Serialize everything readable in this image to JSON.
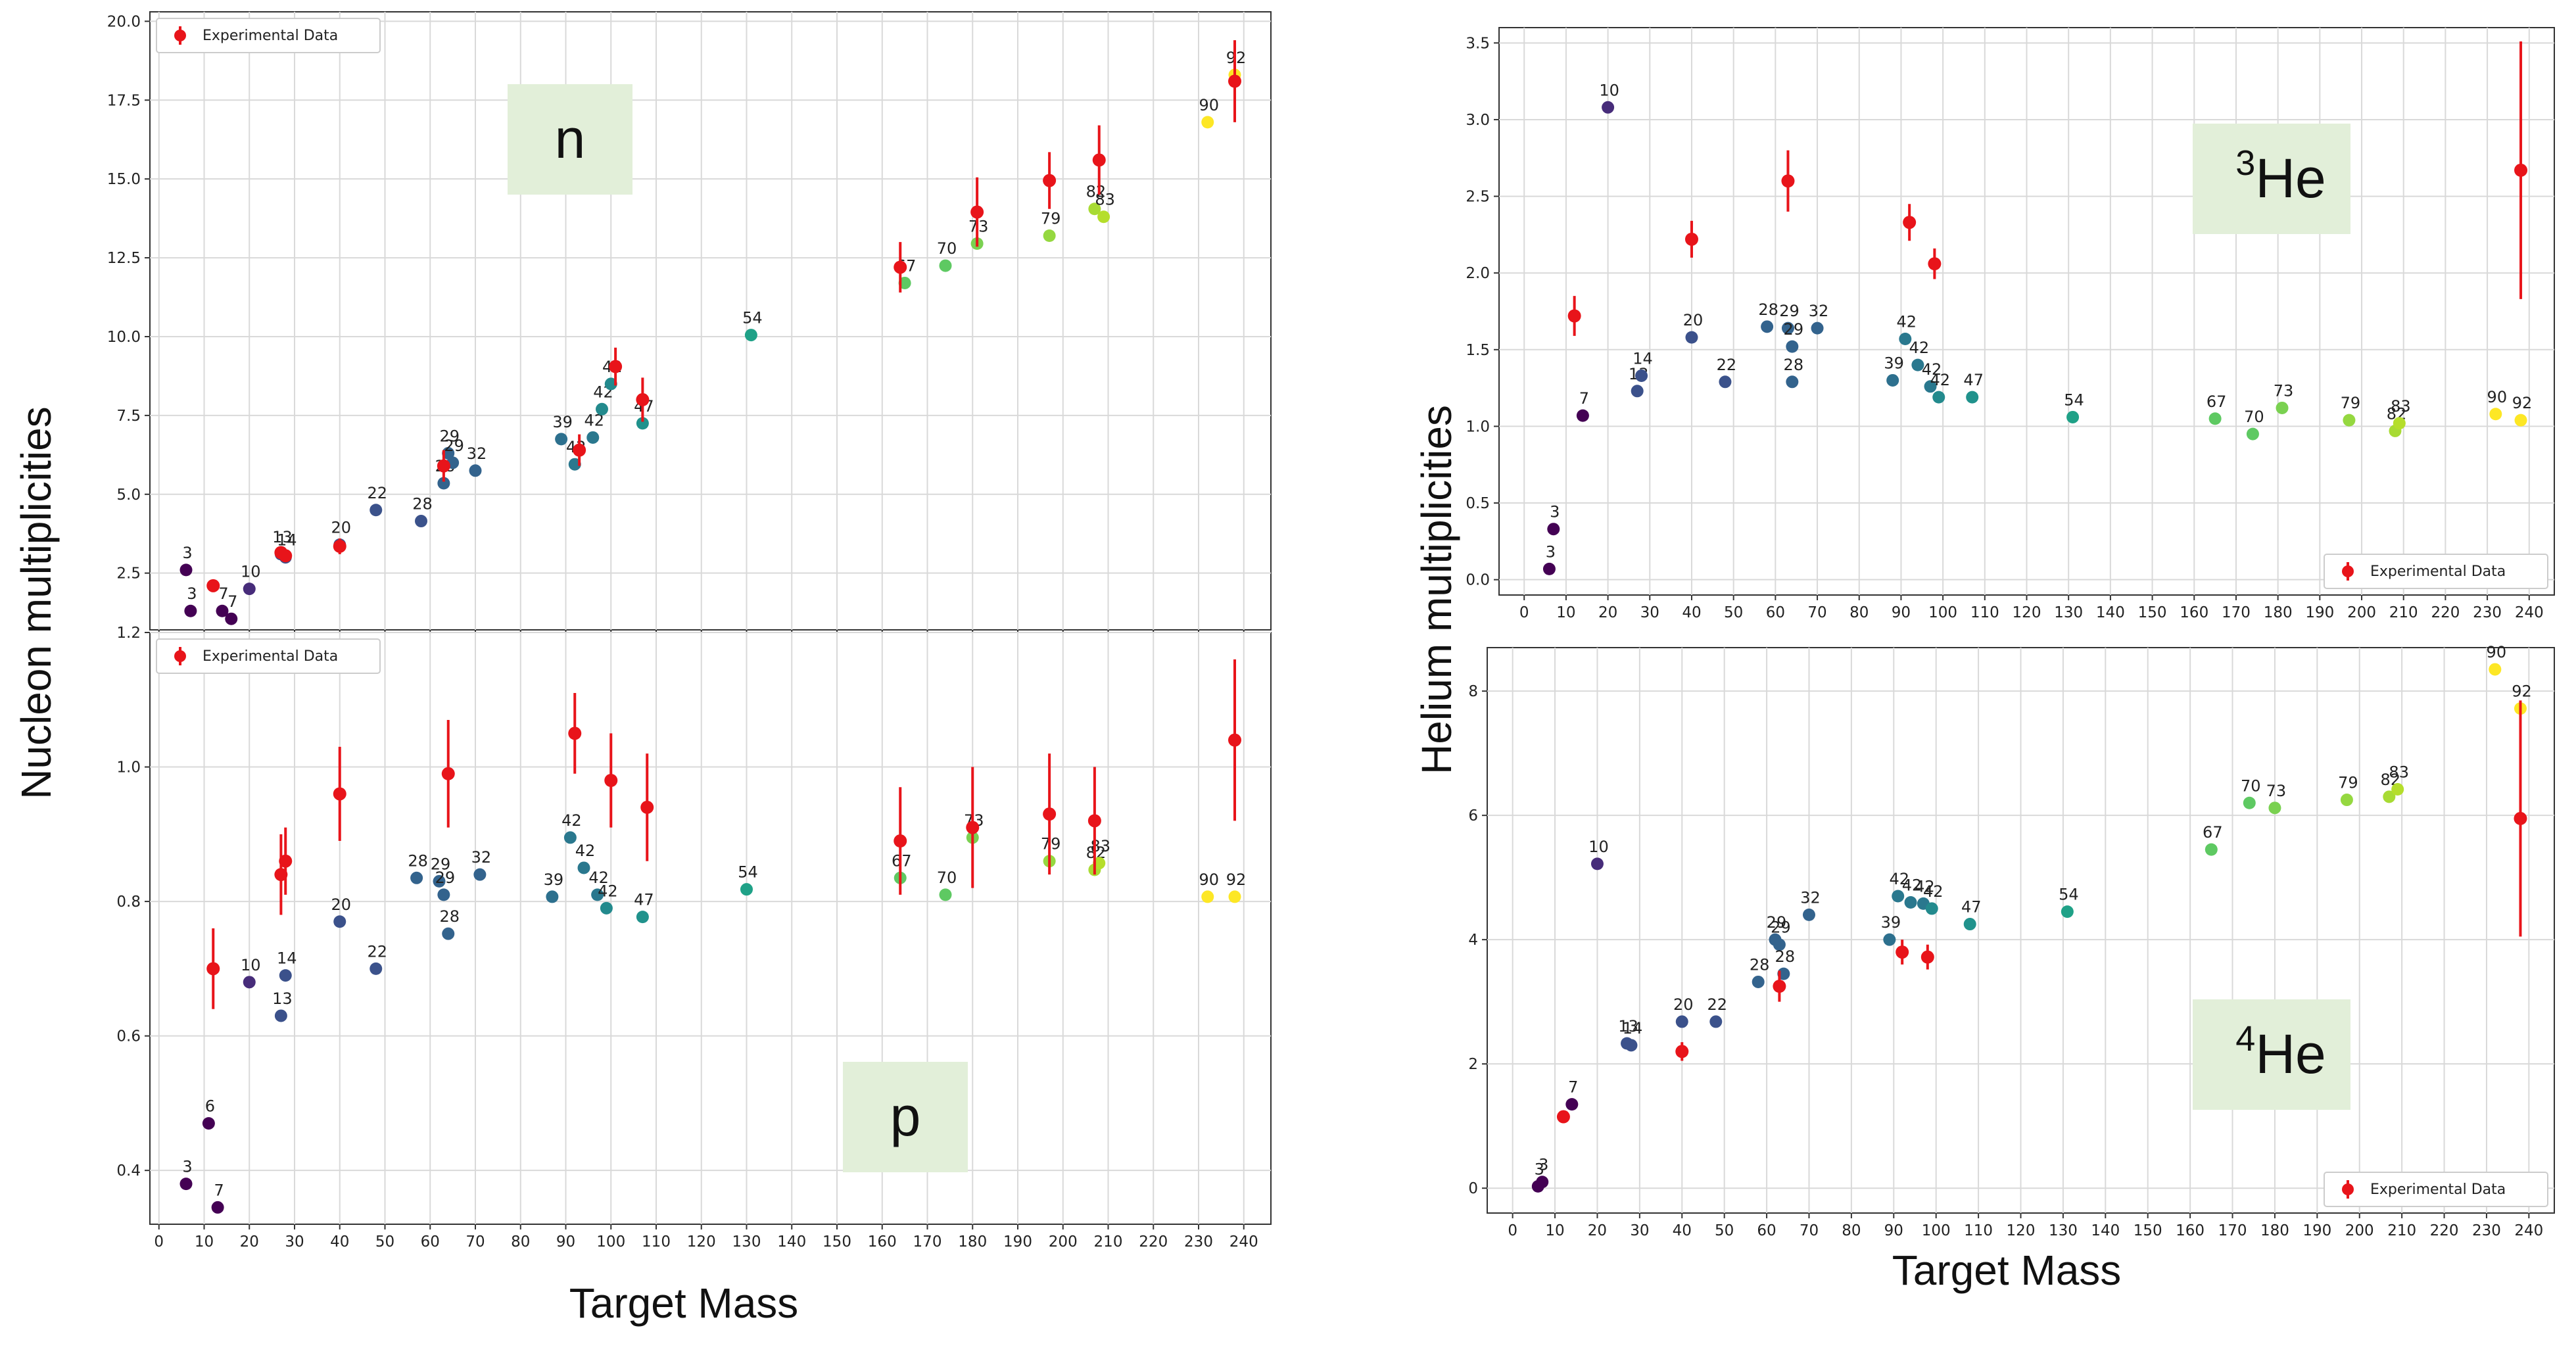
{
  "labels": {
    "left_ylabel": "Nucleon multiplicities",
    "right_ylabel": "Helium multiplicities",
    "left_xlabel": "Target Mass",
    "right_xlabel": "Target Mass"
  },
  "colors": {
    "experimental": "#e8141a",
    "grid": "#d9d9d9",
    "tag_bg": "#e2efd9"
  },
  "chart_data": [
    {
      "id": "n",
      "type": "scatter",
      "tag": "n",
      "tag_super": "",
      "legend": "Experimental Data",
      "legend_position": "top-left",
      "xlim": [
        -2,
        246
      ],
      "ylim": [
        0.7,
        20.3
      ],
      "grid": true,
      "xticks": [
        0,
        10,
        20,
        30,
        40,
        50,
        60,
        70,
        80,
        90,
        100,
        110,
        120,
        130,
        140,
        150,
        160,
        170,
        180,
        190,
        200,
        210,
        220,
        230,
        240
      ],
      "yticks": [
        2.5,
        5.0,
        7.5,
        10.0,
        12.5,
        15.0,
        17.5,
        20.0
      ],
      "ytick_labels": [
        "2.5",
        "5.0",
        "7.5",
        "10.0",
        "12.5",
        "15.0",
        "17.5",
        "20.0"
      ],
      "model": [
        {
          "x": 6,
          "y": 2.6,
          "l": "3",
          "c": "#440154"
        },
        {
          "x": 7,
          "y": 1.3,
          "l": "3",
          "c": "#440154"
        },
        {
          "x": 14,
          "y": 1.3,
          "l": "7",
          "c": "#440154"
        },
        {
          "x": 16,
          "y": 1.05,
          "l": "7",
          "c": "#440154"
        },
        {
          "x": 20,
          "y": 2.0,
          "l": "10",
          "c": "#472c7a"
        },
        {
          "x": 27,
          "y": 3.1,
          "l": "13",
          "c": "#3b518b"
        },
        {
          "x": 28,
          "y": 3.0,
          "l": "14",
          "c": "#3b518b"
        },
        {
          "x": 40,
          "y": 3.4,
          "l": "20",
          "c": "#3b518b"
        },
        {
          "x": 48,
          "y": 4.5,
          "l": "22",
          "c": "#3b528b"
        },
        {
          "x": 58,
          "y": 4.15,
          "l": "28",
          "c": "#3b528b"
        },
        {
          "x": 63,
          "y": 5.35,
          "l": "28",
          "c": "#33638d"
        },
        {
          "x": 64,
          "y": 6.3,
          "l": "29",
          "c": "#33638d"
        },
        {
          "x": 65,
          "y": 6.0,
          "l": "29",
          "c": "#33638d"
        },
        {
          "x": 70,
          "y": 5.75,
          "l": "32",
          "c": "#33638d"
        },
        {
          "x": 89,
          "y": 6.75,
          "l": "39",
          "c": "#2d708e"
        },
        {
          "x": 92,
          "y": 5.95,
          "l": "42",
          "c": "#2a788e"
        },
        {
          "x": 96,
          "y": 6.8,
          "l": "42",
          "c": "#2a788e"
        },
        {
          "x": 98,
          "y": 7.7,
          "l": "42",
          "c": "#238a8d"
        },
        {
          "x": 100,
          "y": 8.5,
          "l": "42",
          "c": "#238a8d"
        },
        {
          "x": 107,
          "y": 7.25,
          "l": "47",
          "c": "#20928c"
        },
        {
          "x": 131,
          "y": 10.05,
          "l": "54",
          "c": "#1fa187"
        },
        {
          "x": 165,
          "y": 11.7,
          "l": "67",
          "c": "#5ec962"
        },
        {
          "x": 174,
          "y": 12.25,
          "l": "70",
          "c": "#5ec962"
        },
        {
          "x": 181,
          "y": 12.95,
          "l": "73",
          "c": "#7ad151"
        },
        {
          "x": 197,
          "y": 13.2,
          "l": "79",
          "c": "#95d840"
        },
        {
          "x": 207,
          "y": 14.05,
          "l": "82",
          "c": "#a8db34"
        },
        {
          "x": 209,
          "y": 13.8,
          "l": "83",
          "c": "#b5de2b"
        },
        {
          "x": 232,
          "y": 16.8,
          "l": "90",
          "c": "#fde725"
        },
        {
          "x": 238,
          "y": 18.3,
          "l": "92",
          "c": "#fde725"
        }
      ],
      "experimental": [
        {
          "x": 12,
          "y": 2.1,
          "e": 0.15
        },
        {
          "x": 27,
          "y": 3.15,
          "e": 0.2
        },
        {
          "x": 28,
          "y": 3.05,
          "e": 0.2
        },
        {
          "x": 40,
          "y": 3.35,
          "e": 0.25
        },
        {
          "x": 63,
          "y": 5.9,
          "e": 0.5
        },
        {
          "x": 93,
          "y": 6.4,
          "e": 0.5
        },
        {
          "x": 101,
          "y": 9.05,
          "e": 0.6
        },
        {
          "x": 107,
          "y": 8.0,
          "e": 0.7
        },
        {
          "x": 164,
          "y": 12.2,
          "e": 0.8
        },
        {
          "x": 181,
          "y": 13.95,
          "e": 1.1
        },
        {
          "x": 197,
          "y": 14.95,
          "e": 0.9
        },
        {
          "x": 208,
          "y": 15.6,
          "e": 1.1
        },
        {
          "x": 238,
          "y": 18.1,
          "e": 1.3
        }
      ]
    },
    {
      "id": "p",
      "type": "scatter",
      "tag": "p",
      "tag_super": "",
      "legend": "Experimental Data",
      "legend_position": "top-left",
      "xlim": [
        -2,
        246
      ],
      "ylim": [
        0.32,
        1.2
      ],
      "grid": true,
      "xticks": [
        0,
        10,
        20,
        30,
        40,
        50,
        60,
        70,
        80,
        90,
        100,
        110,
        120,
        130,
        140,
        150,
        160,
        170,
        180,
        190,
        200,
        210,
        220,
        230,
        240
      ],
      "yticks": [
        0.4,
        0.6,
        0.8,
        1.0,
        1.2
      ],
      "ytick_labels": [
        "0.4",
        "0.6",
        "0.8",
        "1.0",
        "1.2"
      ],
      "model": [
        {
          "x": 6,
          "y": 0.38,
          "l": "3",
          "c": "#440154"
        },
        {
          "x": 11,
          "y": 0.47,
          "l": "6",
          "c": "#440154"
        },
        {
          "x": 13,
          "y": 0.345,
          "l": "7",
          "c": "#440154"
        },
        {
          "x": 20,
          "y": 0.68,
          "l": "10",
          "c": "#472c7a"
        },
        {
          "x": 27,
          "y": 0.63,
          "l": "13",
          "c": "#3b518b"
        },
        {
          "x": 28,
          "y": 0.69,
          "l": "14",
          "c": "#3b518b"
        },
        {
          "x": 40,
          "y": 0.77,
          "l": "20",
          "c": "#3b518b"
        },
        {
          "x": 48,
          "y": 0.7,
          "l": "22",
          "c": "#3b528b"
        },
        {
          "x": 57,
          "y": 0.835,
          "l": "28",
          "c": "#33638d"
        },
        {
          "x": 62,
          "y": 0.83,
          "l": "29",
          "c": "#33638d"
        },
        {
          "x": 63,
          "y": 0.81,
          "l": "29",
          "c": "#33638d"
        },
        {
          "x": 64,
          "y": 0.752,
          "l": "28",
          "c": "#33638d"
        },
        {
          "x": 71,
          "y": 0.84,
          "l": "32",
          "c": "#33638d"
        },
        {
          "x": 87,
          "y": 0.807,
          "l": "39",
          "c": "#2d708e"
        },
        {
          "x": 91,
          "y": 0.895,
          "l": "42",
          "c": "#2a788e"
        },
        {
          "x": 94,
          "y": 0.85,
          "l": "42",
          "c": "#2a788e"
        },
        {
          "x": 97,
          "y": 0.81,
          "l": "42",
          "c": "#2a788e"
        },
        {
          "x": 99,
          "y": 0.79,
          "l": "42",
          "c": "#238a8d"
        },
        {
          "x": 107,
          "y": 0.777,
          "l": "47",
          "c": "#20928c"
        },
        {
          "x": 130,
          "y": 0.818,
          "l": "54",
          "c": "#1fa187"
        },
        {
          "x": 164,
          "y": 0.835,
          "l": "67",
          "c": "#5ec962"
        },
        {
          "x": 174,
          "y": 0.81,
          "l": "70",
          "c": "#5ec962"
        },
        {
          "x": 180,
          "y": 0.895,
          "l": "73",
          "c": "#7ad151"
        },
        {
          "x": 197,
          "y": 0.86,
          "l": "79",
          "c": "#95d840"
        },
        {
          "x": 207,
          "y": 0.847,
          "l": "82",
          "c": "#a8db34"
        },
        {
          "x": 208,
          "y": 0.857,
          "l": "83",
          "c": "#b5de2b"
        },
        {
          "x": 232,
          "y": 0.807,
          "l": "90",
          "c": "#fde725"
        },
        {
          "x": 238,
          "y": 0.807,
          "l": "92",
          "c": "#fde725"
        }
      ],
      "experimental": [
        {
          "x": 12,
          "y": 0.7,
          "e": 0.06
        },
        {
          "x": 27,
          "y": 0.84,
          "e": 0.06
        },
        {
          "x": 28,
          "y": 0.86,
          "e": 0.05
        },
        {
          "x": 40,
          "y": 0.96,
          "e": 0.07
        },
        {
          "x": 64,
          "y": 0.99,
          "e": 0.08
        },
        {
          "x": 92,
          "y": 1.05,
          "e": 0.06
        },
        {
          "x": 100,
          "y": 0.98,
          "e": 0.07
        },
        {
          "x": 108,
          "y": 0.94,
          "e": 0.08
        },
        {
          "x": 164,
          "y": 0.89,
          "e": 0.08
        },
        {
          "x": 180,
          "y": 0.91,
          "e": 0.09
        },
        {
          "x": 197,
          "y": 0.93,
          "e": 0.09
        },
        {
          "x": 207,
          "y": 0.92,
          "e": 0.08
        },
        {
          "x": 238,
          "y": 1.04,
          "e": 0.12
        }
      ]
    },
    {
      "id": "he3",
      "type": "scatter",
      "tag": "He",
      "tag_super": "3",
      "legend": "Experimental Data",
      "legend_position": "bottom-right",
      "xlim": [
        -6,
        246
      ],
      "ylim": [
        -0.1,
        3.6
      ],
      "grid": true,
      "xticks": [
        0,
        10,
        20,
        30,
        40,
        50,
        60,
        70,
        80,
        90,
        100,
        110,
        120,
        130,
        140,
        150,
        160,
        170,
        180,
        190,
        200,
        210,
        220,
        230,
        240
      ],
      "yticks": [
        0.0,
        0.5,
        1.0,
        1.5,
        2.0,
        2.5,
        3.0,
        3.5
      ],
      "ytick_labels": [
        "0.0",
        "0.5",
        "1.0",
        "1.5",
        "2.0",
        "2.5",
        "3.0",
        "3.5"
      ],
      "model": [
        {
          "x": 6,
          "y": 0.07,
          "l": "3",
          "c": "#440154"
        },
        {
          "x": 7,
          "y": 0.33,
          "l": "3",
          "c": "#440154"
        },
        {
          "x": 14,
          "y": 1.07,
          "l": "7",
          "c": "#440154"
        },
        {
          "x": 20,
          "y": 3.08,
          "l": "10",
          "c": "#472c7a"
        },
        {
          "x": 27,
          "y": 1.23,
          "l": "13",
          "c": "#3b518b"
        },
        {
          "x": 28,
          "y": 1.33,
          "l": "14",
          "c": "#3b518b"
        },
        {
          "x": 40,
          "y": 1.58,
          "l": "20",
          "c": "#3b518b"
        },
        {
          "x": 48,
          "y": 1.29,
          "l": "22",
          "c": "#3b528b"
        },
        {
          "x": 58,
          "y": 1.65,
          "l": "28",
          "c": "#33638d"
        },
        {
          "x": 63,
          "y": 1.64,
          "l": "29",
          "c": "#33638d"
        },
        {
          "x": 64,
          "y": 1.52,
          "l": "29",
          "c": "#33638d"
        },
        {
          "x": 64,
          "y": 1.29,
          "l": "28",
          "c": "#33638d"
        },
        {
          "x": 70,
          "y": 1.64,
          "l": "32",
          "c": "#33638d"
        },
        {
          "x": 88,
          "y": 1.3,
          "l": "39",
          "c": "#2d708e"
        },
        {
          "x": 91,
          "y": 1.57,
          "l": "42",
          "c": "#2a788e"
        },
        {
          "x": 94,
          "y": 1.4,
          "l": "42",
          "c": "#2a788e"
        },
        {
          "x": 97,
          "y": 1.26,
          "l": "42",
          "c": "#2a788e"
        },
        {
          "x": 99,
          "y": 1.19,
          "l": "42",
          "c": "#238a8d"
        },
        {
          "x": 107,
          "y": 1.19,
          "l": "47",
          "c": "#20928c"
        },
        {
          "x": 131,
          "y": 1.06,
          "l": "54",
          "c": "#1fa187"
        },
        {
          "x": 165,
          "y": 1.05,
          "l": "67",
          "c": "#5ec962"
        },
        {
          "x": 174,
          "y": 0.95,
          "l": "70",
          "c": "#5ec962"
        },
        {
          "x": 181,
          "y": 1.12,
          "l": "73",
          "c": "#7ad151"
        },
        {
          "x": 197,
          "y": 1.04,
          "l": "79",
          "c": "#95d840"
        },
        {
          "x": 208,
          "y": 0.97,
          "l": "82",
          "c": "#a8db34"
        },
        {
          "x": 209,
          "y": 1.02,
          "l": "83",
          "c": "#b5de2b"
        },
        {
          "x": 232,
          "y": 1.08,
          "l": "90",
          "c": "#fde725"
        },
        {
          "x": 238,
          "y": 1.04,
          "l": "92",
          "c": "#fde725"
        }
      ],
      "experimental": [
        {
          "x": 12,
          "y": 1.72,
          "e": 0.13
        },
        {
          "x": 40,
          "y": 2.22,
          "e": 0.12
        },
        {
          "x": 63,
          "y": 2.6,
          "e": 0.2
        },
        {
          "x": 92,
          "y": 2.33,
          "e": 0.12
        },
        {
          "x": 98,
          "y": 2.06,
          "e": 0.1
        },
        {
          "x": 238,
          "y": 2.67,
          "e": 0.84
        }
      ]
    },
    {
      "id": "he4",
      "type": "scatter",
      "tag": "He",
      "tag_super": "4",
      "legend": "Experimental Data",
      "legend_position": "bottom-right",
      "xlim": [
        -6,
        246
      ],
      "ylim": [
        -0.4,
        8.7
      ],
      "grid": true,
      "xticks": [
        0,
        10,
        20,
        30,
        40,
        50,
        60,
        70,
        80,
        90,
        100,
        110,
        120,
        130,
        140,
        150,
        160,
        170,
        180,
        190,
        200,
        210,
        220,
        230,
        240
      ],
      "yticks": [
        0,
        2,
        4,
        6,
        8
      ],
      "ytick_labels": [
        "0",
        "2",
        "4",
        "6",
        "8"
      ],
      "model": [
        {
          "x": 6,
          "y": 0.03,
          "l": "3",
          "c": "#440154"
        },
        {
          "x": 7,
          "y": 0.1,
          "l": "3",
          "c": "#440154"
        },
        {
          "x": 14,
          "y": 1.35,
          "l": "7",
          "c": "#440154"
        },
        {
          "x": 20,
          "y": 5.22,
          "l": "10",
          "c": "#472c7a"
        },
        {
          "x": 27,
          "y": 2.33,
          "l": "13",
          "c": "#3b518b"
        },
        {
          "x": 28,
          "y": 2.3,
          "l": "14",
          "c": "#3b518b"
        },
        {
          "x": 40,
          "y": 2.68,
          "l": "20",
          "c": "#3b518b"
        },
        {
          "x": 48,
          "y": 2.68,
          "l": "22",
          "c": "#3b528b"
        },
        {
          "x": 58,
          "y": 3.32,
          "l": "28",
          "c": "#33638d"
        },
        {
          "x": 62,
          "y": 4.0,
          "l": "29",
          "c": "#33638d"
        },
        {
          "x": 63,
          "y": 3.92,
          "l": "29",
          "c": "#33638d"
        },
        {
          "x": 64,
          "y": 3.45,
          "l": "28",
          "c": "#33638d"
        },
        {
          "x": 70,
          "y": 4.4,
          "l": "32",
          "c": "#33638d"
        },
        {
          "x": 89,
          "y": 4.0,
          "l": "39",
          "c": "#2d708e"
        },
        {
          "x": 91,
          "y": 4.7,
          "l": "42",
          "c": "#2a788e"
        },
        {
          "x": 94,
          "y": 4.6,
          "l": "42",
          "c": "#2a788e"
        },
        {
          "x": 97,
          "y": 4.58,
          "l": "42",
          "c": "#2a788e"
        },
        {
          "x": 99,
          "y": 4.5,
          "l": "42",
          "c": "#238a8d"
        },
        {
          "x": 108,
          "y": 4.25,
          "l": "47",
          "c": "#20928c"
        },
        {
          "x": 131,
          "y": 4.45,
          "l": "54",
          "c": "#1fa187"
        },
        {
          "x": 165,
          "y": 5.45,
          "l": "67",
          "c": "#5ec962"
        },
        {
          "x": 174,
          "y": 6.2,
          "l": "70",
          "c": "#5ec962"
        },
        {
          "x": 180,
          "y": 6.12,
          "l": "73",
          "c": "#7ad151"
        },
        {
          "x": 197,
          "y": 6.25,
          "l": "79",
          "c": "#95d840"
        },
        {
          "x": 207,
          "y": 6.3,
          "l": "82",
          "c": "#a8db34"
        },
        {
          "x": 209,
          "y": 6.42,
          "l": "83",
          "c": "#b5de2b"
        },
        {
          "x": 232,
          "y": 8.35,
          "l": "90",
          "c": "#fde725"
        },
        {
          "x": 238,
          "y": 7.72,
          "l": "92",
          "c": "#fde725"
        }
      ],
      "experimental": [
        {
          "x": 12,
          "y": 1.15,
          "e": 0.1
        },
        {
          "x": 40,
          "y": 2.2,
          "e": 0.15
        },
        {
          "x": 63,
          "y": 3.25,
          "e": 0.25
        },
        {
          "x": 92,
          "y": 3.8,
          "e": 0.2
        },
        {
          "x": 98,
          "y": 3.72,
          "e": 0.2
        },
        {
          "x": 238,
          "y": 5.95,
          "e": 1.9
        }
      ]
    }
  ]
}
